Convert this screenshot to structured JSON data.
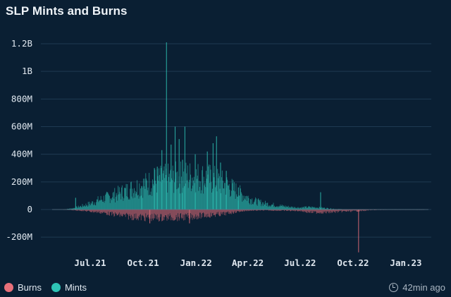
{
  "title": "SLP Mints and Burns",
  "updated": "42min ago",
  "colors": {
    "mints": "#2ec4b6",
    "burns": "#e8707a",
    "background": "#0a1f33",
    "grid": "#1f3a52"
  },
  "chart_data": {
    "type": "bar",
    "stacked": "diverging",
    "title": "SLP Mints and Burns",
    "xlabel": "",
    "ylabel": "",
    "x_ticks": [
      "Jul.21",
      "Oct.21",
      "Jan.22",
      "Apr.22",
      "Jul.22",
      "Oct.22",
      "Jan.23"
    ],
    "y_ticks": [
      {
        "label": "1.2B",
        "value": 1200000000
      },
      {
        "label": "1B",
        "value": 1000000000
      },
      {
        "label": "800M",
        "value": 800000000
      },
      {
        "label": "600M",
        "value": 600000000
      },
      {
        "label": "400M",
        "value": 400000000
      },
      {
        "label": "200M",
        "value": 200000000
      },
      {
        "label": "0",
        "value": 0
      },
      {
        "label": "-200M",
        "value": -200000000
      }
    ],
    "ylim": [
      -300000000,
      1250000000
    ],
    "grid": true,
    "legend_position": "bottom-left",
    "series": [
      {
        "name": "Mints",
        "color": "#2ec4b6",
        "points": [
          [
            "2021-05-15",
            0
          ],
          [
            "2021-06-01",
            10000000
          ],
          [
            "2021-06-15",
            25000000
          ],
          [
            "2021-07-01",
            45000000
          ],
          [
            "2021-07-15",
            70000000
          ],
          [
            "2021-08-01",
            95000000
          ],
          [
            "2021-08-15",
            115000000
          ],
          [
            "2021-09-01",
            140000000
          ],
          [
            "2021-09-15",
            165000000
          ],
          [
            "2021-10-01",
            185000000
          ],
          [
            "2021-10-15",
            205000000
          ],
          [
            "2021-11-01",
            225000000
          ],
          [
            "2021-11-10",
            1210000000
          ],
          [
            "2021-11-15",
            235000000
          ],
          [
            "2021-12-01",
            245000000
          ],
          [
            "2021-12-15",
            250000000
          ],
          [
            "2022-01-01",
            245000000
          ],
          [
            "2022-01-15",
            240000000
          ],
          [
            "2022-02-01",
            225000000
          ],
          [
            "2022-02-15",
            200000000
          ],
          [
            "2022-03-01",
            170000000
          ],
          [
            "2022-03-15",
            130000000
          ],
          [
            "2022-04-01",
            90000000
          ],
          [
            "2022-04-15",
            60000000
          ],
          [
            "2022-05-01",
            45000000
          ],
          [
            "2022-05-15",
            35000000
          ],
          [
            "2022-06-01",
            25000000
          ],
          [
            "2022-06-15",
            18000000
          ],
          [
            "2022-07-01",
            14000000
          ],
          [
            "2022-07-15",
            18000000
          ],
          [
            "2022-08-01",
            15000000
          ],
          [
            "2022-08-15",
            10000000
          ],
          [
            "2022-09-01",
            4000000
          ],
          [
            "2022-09-15",
            2000000
          ],
          [
            "2022-10-01",
            1000000
          ],
          [
            "2022-11-01",
            1000000
          ],
          [
            "2022-12-01",
            1000000
          ],
          [
            "2023-01-01",
            1000000
          ],
          [
            "2023-02-01",
            1000000
          ]
        ],
        "peaks": [
          [
            "2021-06-05",
            85000000
          ],
          [
            "2021-09-28",
            170000000
          ],
          [
            "2021-10-20",
            300000000
          ],
          [
            "2021-10-25",
            310000000
          ],
          [
            "2021-11-02",
            430000000
          ],
          [
            "2021-11-10",
            1210000000
          ],
          [
            "2021-11-18",
            470000000
          ],
          [
            "2021-11-25",
            600000000
          ],
          [
            "2021-12-02",
            510000000
          ],
          [
            "2021-12-08",
            360000000
          ],
          [
            "2021-12-12",
            600000000
          ],
          [
            "2021-12-30",
            400000000
          ],
          [
            "2022-01-20",
            420000000
          ],
          [
            "2022-01-30",
            480000000
          ],
          [
            "2022-02-05",
            530000000
          ],
          [
            "2022-02-12",
            340000000
          ],
          [
            "2022-02-22",
            280000000
          ],
          [
            "2022-03-15",
            160000000
          ],
          [
            "2022-08-05",
            125000000
          ]
        ]
      },
      {
        "name": "Burns",
        "color": "#e8707a",
        "points": [
          [
            "2021-05-15",
            0
          ],
          [
            "2021-06-01",
            -5000000
          ],
          [
            "2021-06-15",
            -8000000
          ],
          [
            "2021-07-01",
            -15000000
          ],
          [
            "2021-07-15",
            -20000000
          ],
          [
            "2021-08-01",
            -30000000
          ],
          [
            "2021-08-15",
            -40000000
          ],
          [
            "2021-09-01",
            -50000000
          ],
          [
            "2021-09-15",
            -55000000
          ],
          [
            "2021-10-01",
            -60000000
          ],
          [
            "2021-10-15",
            -60000000
          ],
          [
            "2021-11-01",
            -62000000
          ],
          [
            "2021-11-15",
            -60000000
          ],
          [
            "2021-12-01",
            -58000000
          ],
          [
            "2021-12-15",
            -55000000
          ],
          [
            "2022-01-01",
            -50000000
          ],
          [
            "2022-01-15",
            -45000000
          ],
          [
            "2022-02-01",
            -40000000
          ],
          [
            "2022-02-15",
            -35000000
          ],
          [
            "2022-03-01",
            -25000000
          ],
          [
            "2022-03-15",
            -15000000
          ],
          [
            "2022-04-01",
            -8000000
          ],
          [
            "2022-05-01",
            -6000000
          ],
          [
            "2022-06-01",
            -8000000
          ],
          [
            "2022-07-01",
            -10000000
          ],
          [
            "2022-07-15",
            -20000000
          ],
          [
            "2022-08-01",
            -22000000
          ],
          [
            "2022-08-15",
            -22000000
          ],
          [
            "2022-09-01",
            -18000000
          ],
          [
            "2022-09-15",
            -14000000
          ],
          [
            "2022-10-01",
            -12000000
          ],
          [
            "2022-10-15",
            -10000000
          ],
          [
            "2022-11-01",
            -4000000
          ],
          [
            "2022-12-01",
            -2000000
          ],
          [
            "2023-01-01",
            -2000000
          ],
          [
            "2023-02-01",
            -2000000
          ]
        ],
        "peaks": [
          [
            "2021-10-12",
            -100000000
          ],
          [
            "2021-12-20",
            -100000000
          ],
          [
            "2022-10-10",
            -310000000
          ]
        ]
      }
    ]
  },
  "legend": [
    {
      "label": "Burns",
      "color": "#e8707a"
    },
    {
      "label": "Mints",
      "color": "#2ec4b6"
    }
  ]
}
